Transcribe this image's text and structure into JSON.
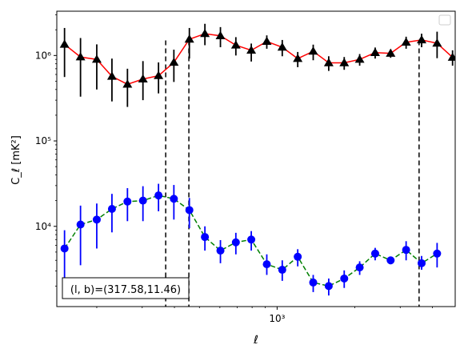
{
  "chart_data": {
    "type": "scatter",
    "xscale": "log",
    "yscale": "log",
    "xlim": [
      140,
      4900
    ],
    "ylim": [
      1150,
      3300000
    ],
    "xlabel": "ℓ",
    "ylabel": "C_ℓ [mK²]",
    "xticks": [
      {
        "value": 1000,
        "label": "10³"
      }
    ],
    "yticks": [
      {
        "value": 10000,
        "label": "10⁴"
      },
      {
        "value": 100000,
        "label": "10⁵"
      },
      {
        "value": 1000000,
        "label": "10⁶"
      }
    ],
    "legend": {
      "placement": "top-right",
      "entries": []
    },
    "annotation": "(l, b)=(317.58,11.46)",
    "vlines": [
      370,
      455,
      3550
    ],
    "colors": {
      "black_series": "#000000",
      "red_line": "#ff0000",
      "blue_series": "#0000ff",
      "green_line": "#008000"
    },
    "series": [
      {
        "marker": "triangle",
        "color": "#000000",
        "line_color": "#ff0000",
        "line_style": "solid",
        "x": [
          150,
          173,
          200,
          229,
          263,
          302,
          347,
          398,
          457,
          525,
          603,
          692,
          794,
          912,
          1047,
          1202,
          1380,
          1585,
          1820,
          2089,
          2399,
          2754,
          3162,
          3631,
          4169,
          4786
        ],
        "y": [
          1350000,
          960000,
          900000,
          570000,
          460000,
          530000,
          580000,
          830000,
          1550000,
          1800000,
          1700000,
          1320000,
          1150000,
          1460000,
          1250000,
          920000,
          1120000,
          820000,
          820000,
          900000,
          1080000,
          1060000,
          1430000,
          1520000,
          1390000,
          950000
        ],
        "y_lo": [
          560000,
          330000,
          400000,
          290000,
          250000,
          300000,
          360000,
          490000,
          920000,
          1320000,
          1250000,
          1000000,
          850000,
          1200000,
          980000,
          730000,
          880000,
          660000,
          680000,
          760000,
          920000,
          940000,
          1200000,
          1250000,
          930000,
          760000
        ],
        "y_hi": [
          2100000,
          1600000,
          1350000,
          920000,
          700000,
          860000,
          830000,
          1170000,
          2100000,
          2350000,
          2150000,
          1640000,
          1380000,
          1720000,
          1520000,
          1100000,
          1340000,
          980000,
          960000,
          1040000,
          1240000,
          1180000,
          1660000,
          1800000,
          1900000,
          1150000
        ]
      },
      {
        "marker": "circle",
        "color": "#0000ff",
        "line_color": "#008000",
        "line_style": "dashed",
        "x": [
          150,
          173,
          200,
          229,
          263,
          302,
          347,
          398,
          457,
          525,
          603,
          692,
          794,
          912,
          1047,
          1202,
          1380,
          1585,
          1820,
          2089,
          2399,
          2754,
          3162,
          3631,
          4169
        ],
        "y": [
          5500,
          10500,
          12000,
          16000,
          19500,
          20000,
          23000,
          21000,
          15500,
          7500,
          5200,
          6500,
          7000,
          3600,
          3100,
          4400,
          2200,
          2000,
          2450,
          3300,
          4800,
          4000,
          5300,
          3700,
          4800
        ],
        "y_lo": [
          2000,
          3500,
          5500,
          8500,
          11500,
          11500,
          15000,
          12000,
          9500,
          5200,
          3700,
          4700,
          5200,
          2700,
          2300,
          3400,
          1700,
          1550,
          1900,
          2700,
          4000,
          3600,
          4000,
          3100,
          3300
        ],
        "y_hi": [
          9000,
          17500,
          18500,
          24000,
          28000,
          29500,
          31500,
          30500,
          21500,
          10000,
          6900,
          8400,
          8800,
          4700,
          4000,
          5400,
          2700,
          2450,
          3050,
          3900,
          5600,
          4400,
          6700,
          4500,
          6400
        ]
      }
    ]
  }
}
